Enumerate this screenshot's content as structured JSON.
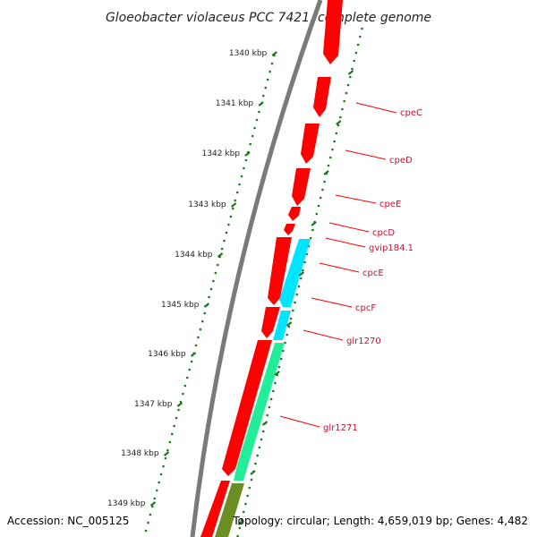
{
  "title": "Gloeobacter violaceus PCC 7421, complete genome",
  "footer": {
    "accession": "Accession: NC_005125",
    "topology": "Topology: circular; Length: 4,659,019 bp; Genes: 4,482"
  },
  "colors": {
    "backbone": "#7a7a7a",
    "forward_gene": "#ff0000",
    "reverse_gene_a": "#00e5ff",
    "reverse_gene_b": "#22ee99",
    "reverse_gene_c": "#6b8e23",
    "tick_dots": "#1a7a1a",
    "label_text": "#c8102e",
    "leader_line": "#ff0000"
  },
  "ticks": [
    "1340 kbp",
    "1341 kbp",
    "1342 kbp",
    "1343 kbp",
    "1344 kbp",
    "1345 kbp",
    "1346 kbp",
    "1347 kbp",
    "1348 kbp",
    "1349 kbp"
  ],
  "genes": [
    "cpeC",
    "cpeD",
    "cpeE",
    "cpcD",
    "gvip184.1",
    "cpcE",
    "cpcF",
    "glr1270",
    "glr1271"
  ]
}
